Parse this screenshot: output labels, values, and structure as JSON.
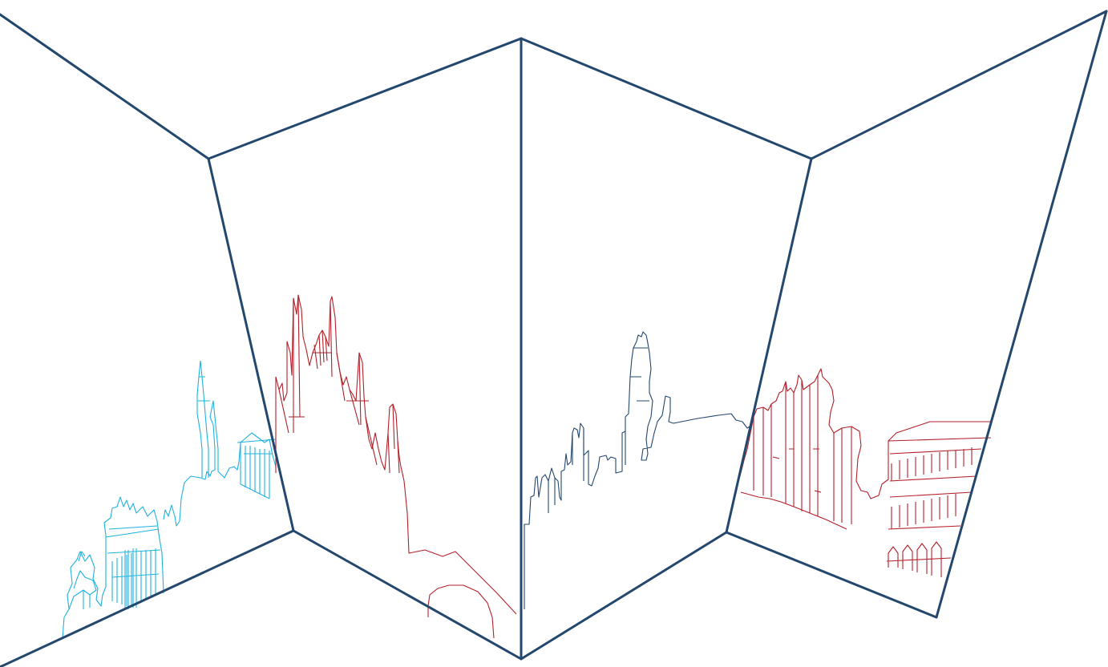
{
  "colors": {
    "frame": "#23476d",
    "skyline_cyan": "#1fb2e0",
    "skyline_red": "#b3202a",
    "skyline_navy": "#23476d",
    "background": "#ffffff"
  },
  "panels": [
    {
      "id": "panel-1",
      "skyline_color": "cyan"
    },
    {
      "id": "panel-2",
      "skyline_color": "red"
    },
    {
      "id": "panel-3",
      "skyline_color": "navy"
    },
    {
      "id": "panel-4",
      "skyline_color": "red"
    }
  ]
}
